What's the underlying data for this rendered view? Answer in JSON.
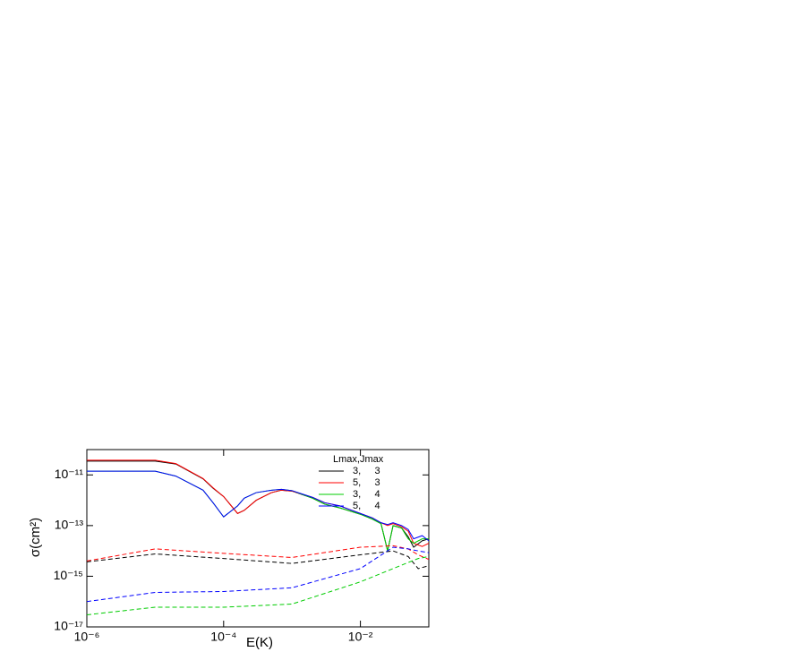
{
  "chart_data": {
    "type": "line",
    "xlabel": "E(K)",
    "ylabel": "σ(cm²)",
    "xscale": "log",
    "yscale": "log",
    "xlim": [
      1e-06,
      0.1
    ],
    "ylim": [
      1e-17,
      1e-10
    ],
    "xticks": [
      {
        "value": 1e-06,
        "label": "10⁻⁶"
      },
      {
        "value": 0.0001,
        "label": "10⁻⁴"
      },
      {
        "value": 0.01,
        "label": "10⁻²"
      }
    ],
    "yticks": [
      {
        "value": 1e-11,
        "label": "10⁻¹¹"
      },
      {
        "value": 1e-13,
        "label": "10⁻¹³"
      },
      {
        "value": 1e-15,
        "label": "10⁻¹⁵"
      },
      {
        "value": 1e-17,
        "label": "10⁻¹⁷"
      }
    ],
    "legend_title": "Lmax,Jmax",
    "legend": "upper right",
    "series": [
      {
        "name": "3,     3",
        "color": "#000000",
        "dash": false,
        "x": [
          1e-06,
          1e-05,
          2e-05,
          5e-05,
          7e-05,
          0.0001,
          0.00016,
          0.0002,
          0.0003,
          0.0005,
          0.0007,
          0.001,
          0.002,
          0.003,
          0.005,
          0.01,
          0.015,
          0.02,
          0.025,
          0.03,
          0.04,
          0.05,
          0.06,
          0.08,
          0.1
        ],
        "values": [
          3.5e-11,
          3.5e-11,
          2.7e-11,
          7e-12,
          3e-12,
          1.4e-12,
          3e-13,
          4e-13,
          1e-12,
          2e-12,
          2.5e-12,
          2.3e-12,
          1.2e-12,
          7e-13,
          5e-13,
          2.8e-13,
          1.8e-13,
          1.2e-13,
          1e-14,
          1e-13,
          8e-14,
          3.6e-14,
          1.4e-14,
          2.5e-14,
          3e-14
        ]
      },
      {
        "name": "5,     3",
        "color": "#ff0000",
        "dash": false,
        "x": [
          1e-06,
          1e-05,
          2e-05,
          5e-05,
          7e-05,
          0.0001,
          0.00016,
          0.0002,
          0.0003,
          0.0005,
          0.0007,
          0.001,
          0.002,
          0.003,
          0.005,
          0.01,
          0.015,
          0.02,
          0.025,
          0.03,
          0.04,
          0.05,
          0.06,
          0.08,
          0.1
        ],
        "values": [
          3.8e-11,
          3.8e-11,
          2.8e-11,
          7.2e-12,
          3.1e-12,
          1.4e-12,
          3e-13,
          4e-13,
          1e-12,
          2e-12,
          2.5e-12,
          2.3e-12,
          1.3e-12,
          8e-13,
          6e-13,
          3e-13,
          2e-13,
          1.3e-13,
          1e-13,
          1.2e-13,
          9e-14,
          6e-14,
          2e-14,
          1.5e-14,
          2e-14
        ]
      },
      {
        "name": "3,     4",
        "color": "#00cc00",
        "dash": false,
        "x": [
          1e-06,
          1e-05,
          2e-05,
          5e-05,
          7e-05,
          0.0001,
          0.00016,
          0.0002,
          0.0003,
          0.0005,
          0.0007,
          0.001,
          0.002,
          0.003,
          0.005,
          0.01,
          0.015,
          0.02,
          0.025,
          0.03,
          0.04,
          0.05,
          0.06,
          0.08,
          0.1
        ],
        "values": [
          1.4e-11,
          1.4e-11,
          9e-12,
          2.5e-12,
          8e-13,
          2.2e-13,
          6e-13,
          1.2e-12,
          2e-12,
          2.5e-12,
          2.7e-12,
          2.4e-12,
          1.2e-12,
          7e-13,
          5e-13,
          2.8e-13,
          1.8e-13,
          1.2e-13,
          1e-14,
          1e-13,
          8e-14,
          3e-14,
          2e-14,
          3e-14,
          3e-14
        ]
      },
      {
        "name": "5,     4",
        "color": "#0000ff",
        "dash": false,
        "x": [
          1e-06,
          1e-05,
          2e-05,
          5e-05,
          7e-05,
          0.0001,
          0.00016,
          0.0002,
          0.0003,
          0.0005,
          0.0007,
          0.001,
          0.002,
          0.003,
          0.005,
          0.01,
          0.015,
          0.02,
          0.025,
          0.03,
          0.04,
          0.05,
          0.06,
          0.08,
          0.1
        ],
        "values": [
          1.4e-11,
          1.4e-11,
          9e-12,
          2.5e-12,
          8e-13,
          2.2e-13,
          6e-13,
          1.2e-12,
          2e-12,
          2.5e-12,
          2.7e-12,
          2.4e-12,
          1.3e-12,
          8e-13,
          6e-13,
          3e-13,
          2e-13,
          1.3e-13,
          1.1e-13,
          1.3e-13,
          1e-13,
          7e-14,
          3e-14,
          4e-14,
          2.5e-14
        ]
      },
      {
        "color": "#000000",
        "dash": true,
        "x": [
          1e-06,
          1e-05,
          0.0001,
          0.001,
          0.01,
          0.03,
          0.05,
          0.07,
          0.1
        ],
        "values": [
          3.7e-15,
          7.6e-15,
          5e-15,
          3.2e-15,
          7e-15,
          1e-14,
          6e-15,
          2e-15,
          2.6e-15
        ]
      },
      {
        "color": "#ff0000",
        "dash": true,
        "x": [
          1e-06,
          1e-05,
          0.0001,
          0.001,
          0.01,
          0.03,
          0.05,
          0.07,
          0.1
        ],
        "values": [
          4e-15,
          1.2e-14,
          8e-15,
          5.5e-15,
          1.4e-14,
          1.6e-14,
          1.2e-14,
          7e-15,
          4.6e-15
        ]
      },
      {
        "color": "#00cc00",
        "dash": true,
        "x": [
          1e-06,
          1e-05,
          0.0001,
          0.001,
          0.01,
          0.03,
          0.05,
          0.07,
          0.1
        ],
        "values": [
          3e-17,
          6e-17,
          6e-17,
          8e-17,
          6e-16,
          2e-15,
          3.5e-15,
          5e-15,
          6e-15
        ]
      },
      {
        "color": "#0000ff",
        "dash": true,
        "x": [
          1e-06,
          1e-05,
          0.0001,
          0.001,
          0.01,
          0.03,
          0.05,
          0.07,
          0.1
        ],
        "values": [
          1e-16,
          2.3e-16,
          2.5e-16,
          3.5e-16,
          2e-15,
          1.4e-14,
          1.2e-14,
          1e-14,
          8.5e-15
        ]
      }
    ]
  }
}
